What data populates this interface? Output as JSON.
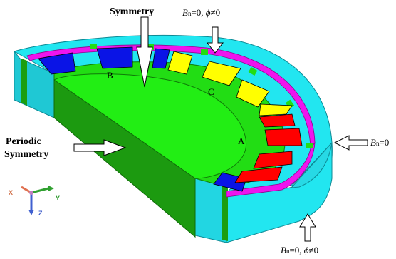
{
  "labels": {
    "symmetry": "Symmetry",
    "periodic_line1": "Periodic",
    "periodic_line2": "Symmetry",
    "phase_a": "A",
    "phase_b": "B",
    "phase_c": "C"
  },
  "boundary_conditions": {
    "top": {
      "b": "B",
      "n": "n",
      "rest": "=0, ",
      "phi": "ϕ",
      "tail": "≠0"
    },
    "right": {
      "b": "B",
      "n": "n",
      "rest": "=0"
    },
    "bottom": {
      "b": "B",
      "n": "n",
      "rest": "=0, ",
      "phi": "ϕ",
      "tail": "≠0"
    }
  },
  "axes": {
    "x": "X",
    "y": "Y",
    "z": "Z"
  },
  "colors": {
    "stator_yoke": "#22e6f0",
    "rotor_core": "#22dd14",
    "face_dark": "#1c9a10",
    "magnet_band": "#ee14ee",
    "phase_a": "#ff0000",
    "phase_b": "#0a14e6",
    "phase_c": "#ffff00"
  }
}
